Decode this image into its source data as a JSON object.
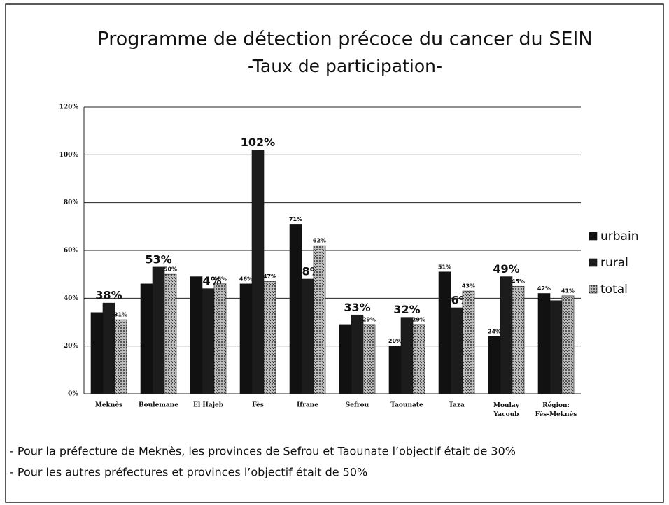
{
  "chart_data": {
    "type": "bar",
    "title": "Programme de détection précoce du cancer du SEIN",
    "subtitle": "-Taux de participation-",
    "categories": [
      "Meknès",
      "Boulemane",
      "El Hajeb",
      "Fès",
      "Ifrane",
      "Sefrou",
      "Taounate",
      "Taza",
      "Moulay Yacoub",
      "Région: Fès-Meknès"
    ],
    "series": [
      {
        "name": "urbain",
        "color": "#111111",
        "values": [
          34,
          46,
          49,
          46,
          71,
          29,
          20,
          51,
          24,
          42
        ],
        "value_labels": [
          null,
          null,
          null,
          "46%",
          "71%",
          null,
          "20%",
          "51%",
          "24%",
          "42%"
        ]
      },
      {
        "name": "rural",
        "color": "#1c1c1c",
        "values": [
          38,
          53,
          44,
          102,
          48,
          33,
          32,
          36,
          49,
          39
        ],
        "value_labels": [
          "38%",
          "53%",
          "44%",
          "102%",
          "48%",
          "33%",
          "32%",
          "36%",
          "49%",
          null
        ]
      },
      {
        "name": "total",
        "color": "#9a9a9a",
        "values": [
          31,
          50,
          46,
          47,
          62,
          29,
          29,
          43,
          45,
          41
        ],
        "value_labels": [
          "31%",
          "50%",
          "46%",
          "47%",
          "62%",
          "29%",
          "29%",
          "43%",
          "45%",
          "41%"
        ]
      }
    ],
    "ylim": [
      0,
      120
    ],
    "yticks": [
      {
        "value": 0,
        "label": "0%"
      },
      {
        "value": 20,
        "label": "20%"
      },
      {
        "value": 40,
        "label": "40%"
      },
      {
        "value": 60,
        "label": "60%"
      },
      {
        "value": 80,
        "label": "80%"
      },
      {
        "value": 100,
        "label": "100%"
      },
      {
        "value": 120,
        "label": "120%"
      }
    ],
    "grid": true,
    "legend": "right",
    "notes": [
      "- Pour la préfecture de Meknès, les provinces de Sefrou et Taounate l’objectif était de 30%",
      "- Pour les autres préfectures et provinces l’objectif était de 50%"
    ]
  }
}
